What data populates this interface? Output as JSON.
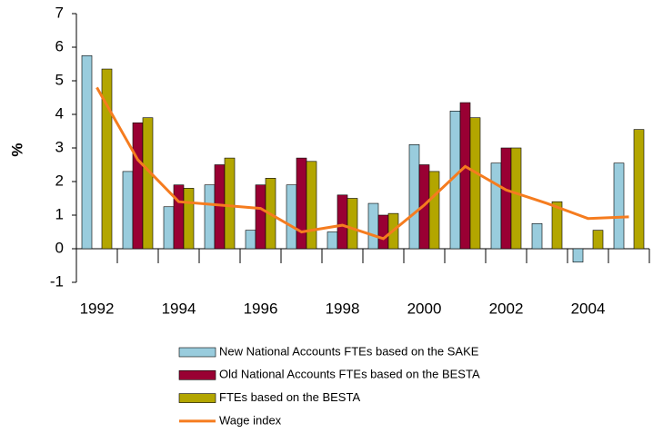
{
  "chart_data": {
    "type": "bar",
    "ylabel": "%",
    "categories": [
      "1992",
      null,
      "1994",
      null,
      "1996",
      null,
      "1998",
      null,
      "2000",
      null,
      "2002",
      null,
      "2004",
      null
    ],
    "series": [
      {
        "name": "New National Accounts FTEs based on the SAKE",
        "color": "#99ccdd",
        "values": [
          5.75,
          2.3,
          1.25,
          1.9,
          0.55,
          1.9,
          0.5,
          1.35,
          3.1,
          4.1,
          2.55,
          0.75,
          -0.4,
          2.55
        ]
      },
      {
        "name": "Old National Accounts FTEs based on the BESTA",
        "color": "#990033",
        "values": [
          null,
          3.75,
          1.9,
          2.5,
          1.9,
          2.7,
          1.6,
          1.0,
          2.5,
          4.35,
          3.0,
          null,
          null,
          null
        ]
      },
      {
        "name": "FTEs based on the BESTA",
        "color": "#b3a600",
        "values": [
          5.35,
          3.9,
          1.8,
          2.7,
          2.1,
          2.6,
          1.5,
          1.05,
          2.3,
          3.9,
          3.0,
          1.4,
          0.55,
          3.55
        ]
      },
      {
        "name": "Wage index",
        "type": "line",
        "color": "#f57c1f",
        "values": [
          4.8,
          2.65,
          1.4,
          1.3,
          1.2,
          0.5,
          0.7,
          0.3,
          1.3,
          2.45,
          1.75,
          1.35,
          0.9,
          0.95
        ]
      }
    ],
    "ylim": [
      -1,
      7
    ],
    "yticks": [
      -1,
      0,
      1,
      2,
      3,
      4,
      5,
      6,
      7
    ]
  }
}
